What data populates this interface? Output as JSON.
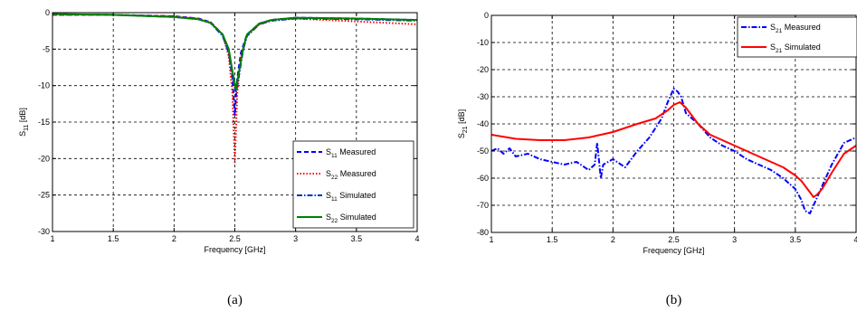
{
  "chart_data": [
    {
      "type": "line",
      "caption": "(a)",
      "xlabel": "Frequency [GHz]",
      "ylabel": "S",
      "ylabel_sub": "11",
      "ylabel_unit": "[dB]",
      "xlim": [
        1,
        4
      ],
      "ylim": [
        -30,
        0
      ],
      "xticks": [
        1,
        1.5,
        2,
        2.5,
        3,
        3.5,
        4
      ],
      "xtick_labels": [
        "1",
        "1.5",
        "2",
        "2.5",
        "3",
        "3.5",
        "4"
      ],
      "yticks": [
        0,
        -5,
        -10,
        -15,
        -20,
        -25,
        -30
      ],
      "ytick_labels": [
        "0",
        "-5",
        "-10",
        "-15",
        "-20",
        "-25",
        "-30"
      ],
      "grid": true,
      "legend_position": "bottom-right",
      "series": [
        {
          "name": "S",
          "sub": "11",
          "suffix": " Measured",
          "color": "#0000ff",
          "style": "dashed",
          "x": [
            1,
            1.5,
            2,
            2.2,
            2.3,
            2.4,
            2.45,
            2.48,
            2.5,
            2.52,
            2.55,
            2.6,
            2.7,
            2.8,
            3,
            3.5,
            4
          ],
          "y": [
            -0.3,
            -0.3,
            -0.5,
            -0.8,
            -1.3,
            -3,
            -5.5,
            -9,
            -14,
            -9,
            -5.5,
            -3,
            -1.5,
            -1,
            -0.7,
            -0.8,
            -1
          ]
        },
        {
          "name": "S",
          "sub": "22",
          "suffix": " Measured",
          "color": "#ff0000",
          "style": "dotted",
          "x": [
            1,
            1.5,
            2,
            2.2,
            2.3,
            2.4,
            2.45,
            2.48,
            2.5,
            2.52,
            2.55,
            2.6,
            2.7,
            2.8,
            3,
            3.5,
            4
          ],
          "y": [
            -0.3,
            -0.3,
            -0.5,
            -0.8,
            -1.3,
            -3,
            -6,
            -11,
            -20.5,
            -11,
            -6,
            -3.2,
            -1.6,
            -1.1,
            -0.8,
            -1.2,
            -1.6
          ]
        },
        {
          "name": "S",
          "sub": "11",
          "suffix": " Simulated",
          "color": "#0033cc",
          "style": "dashdot",
          "x": [
            1,
            1.5,
            2,
            2.2,
            2.3,
            2.4,
            2.45,
            2.48,
            2.51,
            2.54,
            2.57,
            2.6,
            2.7,
            2.8,
            3,
            3.5,
            4
          ],
          "y": [
            -0.2,
            -0.3,
            -0.6,
            -0.9,
            -1.4,
            -3.2,
            -5.5,
            -8.5,
            -11,
            -8,
            -5,
            -3.2,
            -1.6,
            -1.1,
            -0.8,
            -0.9,
            -1.1
          ]
        },
        {
          "name": "S",
          "sub": "22",
          "suffix": " Simulated",
          "color": "#008000",
          "style": "solid",
          "x": [
            1,
            1.5,
            2,
            2.2,
            2.3,
            2.4,
            2.45,
            2.48,
            2.51,
            2.54,
            2.57,
            2.6,
            2.7,
            2.8,
            3,
            3.5,
            4
          ],
          "y": [
            -0.2,
            -0.3,
            -0.6,
            -0.9,
            -1.4,
            -3,
            -5,
            -8,
            -10.5,
            -7.5,
            -4.8,
            -3,
            -1.5,
            -1,
            -0.7,
            -0.8,
            -1
          ]
        }
      ]
    },
    {
      "type": "line",
      "caption": "(b)",
      "xlabel": "Frequency [GHz]",
      "ylabel": "S",
      "ylabel_sub": "21",
      "ylabel_unit": "[dB]",
      "xlim": [
        1,
        4
      ],
      "ylim": [
        -80,
        0
      ],
      "xticks": [
        1,
        1.5,
        2,
        2.5,
        3,
        3.5,
        4
      ],
      "xtick_labels": [
        "1",
        "1.5",
        "2",
        "2.5",
        "3",
        "3.5",
        "4"
      ],
      "yticks": [
        0,
        -10,
        -20,
        -30,
        -40,
        -50,
        -60,
        -70,
        -80
      ],
      "ytick_labels": [
        "0",
        "-10",
        "-20",
        "-30",
        "-40",
        "-50",
        "-60",
        "-70",
        "-80"
      ],
      "grid": true,
      "legend_position": "top-right",
      "series": [
        {
          "name": "S",
          "sub": "21",
          "suffix": " Measured",
          "color": "#0000ff",
          "style": "dashdot",
          "x": [
            1,
            1.05,
            1.1,
            1.15,
            1.2,
            1.3,
            1.4,
            1.5,
            1.6,
            1.7,
            1.8,
            1.85,
            1.87,
            1.9,
            1.92,
            2,
            2.1,
            2.2,
            2.3,
            2.4,
            2.45,
            2.5,
            2.53,
            2.56,
            2.6,
            2.7,
            2.8,
            2.9,
            3,
            3.1,
            3.2,
            3.3,
            3.4,
            3.5,
            3.55,
            3.58,
            3.62,
            3.7,
            3.8,
            3.9,
            4
          ],
          "y": [
            -50,
            -49,
            -51,
            -49,
            -52,
            -51,
            -53,
            -54,
            -55,
            -54,
            -57,
            -55,
            -47,
            -60,
            -55,
            -53,
            -56,
            -50,
            -45,
            -38,
            -32,
            -27,
            -28,
            -30,
            -36,
            -40,
            -45,
            -48,
            -50,
            -53,
            -55,
            -57,
            -60,
            -64,
            -68,
            -72,
            -73,
            -65,
            -55,
            -47,
            -45
          ]
        },
        {
          "name": "S",
          "sub": "21",
          "suffix": " Simulated",
          "color": "#ff0000",
          "style": "solid",
          "x": [
            1,
            1.2,
            1.4,
            1.6,
            1.8,
            2,
            2.2,
            2.35,
            2.45,
            2.5,
            2.55,
            2.6,
            2.7,
            2.8,
            3,
            3.2,
            3.4,
            3.5,
            3.55,
            3.6,
            3.65,
            3.68,
            3.72,
            3.8,
            3.9,
            4
          ],
          "y": [
            -44,
            -45.5,
            -46,
            -46,
            -45,
            -43,
            -40,
            -38,
            -35,
            -33,
            -32,
            -34,
            -40,
            -44,
            -48,
            -52,
            -56,
            -59,
            -61,
            -64,
            -67,
            -66,
            -64,
            -58,
            -51,
            -48
          ]
        }
      ]
    }
  ]
}
